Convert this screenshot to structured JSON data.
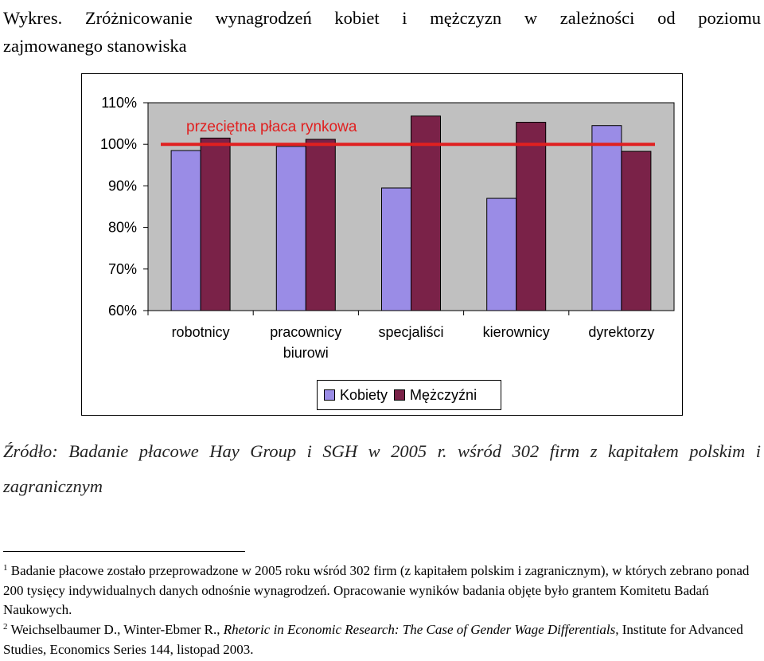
{
  "caption": {
    "line1": "Wykres. Zróżnicowanie wynagrodzeń kobiet i mężczyzn w zależności od poziomu",
    "line2": "zajmowanego stanowiska"
  },
  "chart_data": {
    "type": "bar",
    "categories": [
      [
        "robotnicy"
      ],
      [
        "pracownicy",
        "biurowi"
      ],
      [
        "specjaliści"
      ],
      [
        "kierownicy"
      ],
      [
        "dyrektorzy"
      ]
    ],
    "series": [
      {
        "name": "Kobiety",
        "color": "#9a8ce6",
        "values": [
          98.5,
          99.5,
          89.5,
          87,
          104.5
        ]
      },
      {
        "name": "Mężczyźni",
        "color": "#7a2248",
        "values": [
          101.5,
          101.2,
          106.8,
          105.3,
          98.3
        ]
      }
    ],
    "reference_line": {
      "value": 100,
      "label": "przeciętna płaca rynkowa",
      "color": "#e02020"
    },
    "ylim": [
      60,
      110
    ],
    "yticks": [
      "60%",
      "70%",
      "80%",
      "90%",
      "100%",
      "110%"
    ],
    "plot_background": "#c0c0c0",
    "grid": false,
    "legend_position": "bottom"
  },
  "source": "Źródło: Badanie płacowe Hay Group i SGH w 2005 r. wśród 302 firm z kapitałem polskim i zagranicznym",
  "footnotes": {
    "fn1_num": "1",
    "fn1_text": "Badanie płacowe zostało przeprowadzone w 2005 roku wśród 302 firm (z kapitałem polskim i zagranicznym), w których zebrano ponad 200 tysięcy indywidualnych danych odnośnie wynagrodzeń. Opracowanie wyników badania objęte było grantem Komitetu Badań Naukowych.",
    "fn2_num": "2",
    "fn2_author": "Weichselbaumer D., Winter-Ebmer R.,",
    "fn2_title": "Rhetoric in Economic Research: The Case of Gender Wage Differentials",
    "fn2_rest": ", Institute for Advanced Studies, Economics Series 144, listopad 2003."
  }
}
